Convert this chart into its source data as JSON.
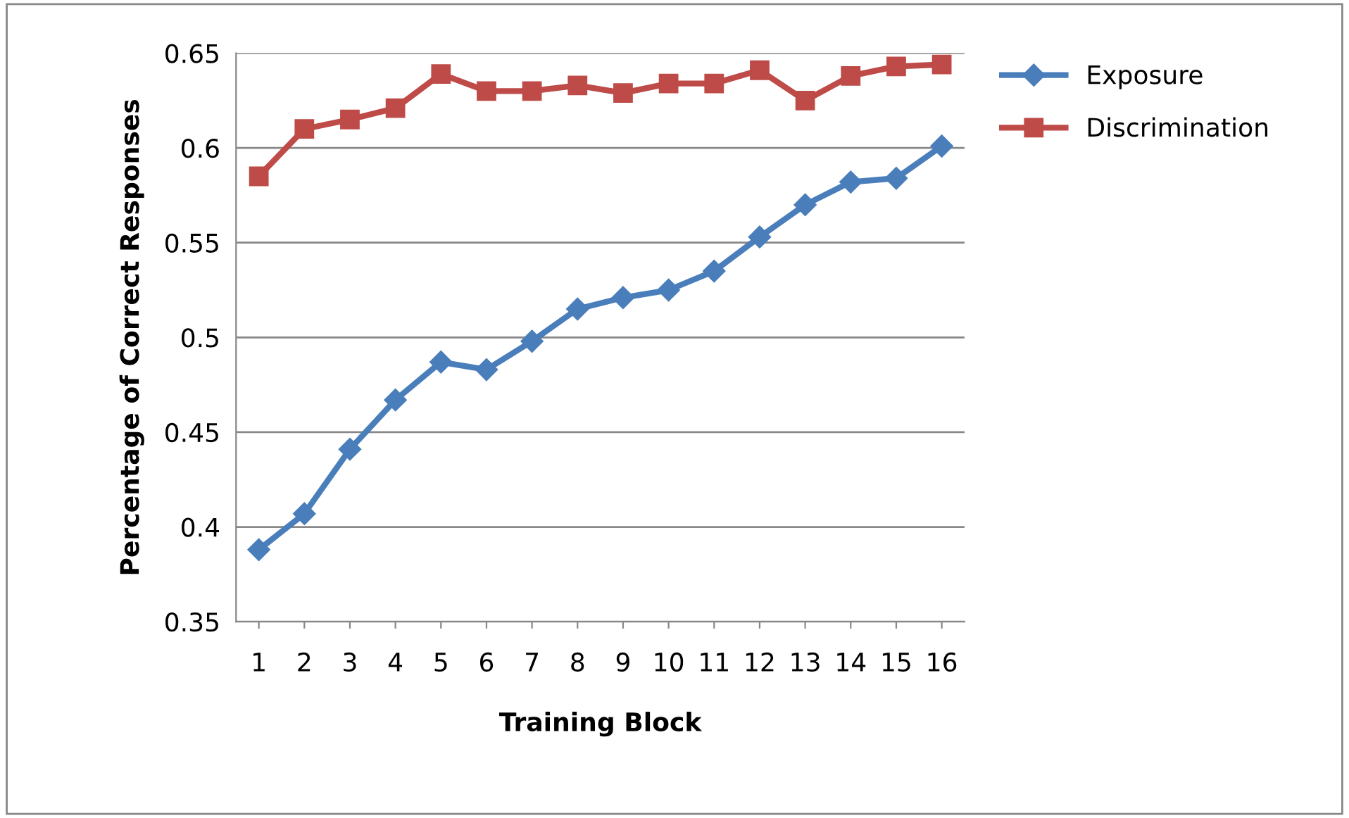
{
  "chart_data": {
    "type": "line",
    "xlabel": "Training Block",
    "ylabel": "Percentage of Correct Responses",
    "categories": [
      "1",
      "2",
      "3",
      "4",
      "5",
      "6",
      "7",
      "8",
      "9",
      "10",
      "11",
      "12",
      "13",
      "14",
      "15",
      "16"
    ],
    "series": [
      {
        "name": "Exposure",
        "color": "#4a7ebb",
        "marker": "diamond",
        "values": [
          0.388,
          0.407,
          0.441,
          0.467,
          0.487,
          0.483,
          0.498,
          0.515,
          0.521,
          0.525,
          0.535,
          0.553,
          0.57,
          0.582,
          0.584,
          0.601
        ]
      },
      {
        "name": "Discrimination",
        "color": "#be4b48",
        "marker": "square",
        "values": [
          0.585,
          0.61,
          0.615,
          0.621,
          0.639,
          0.63,
          0.63,
          0.633,
          0.629,
          0.634,
          0.634,
          0.641,
          0.625,
          0.638,
          0.643,
          0.644
        ]
      }
    ],
    "ylim": [
      0.35,
      0.65
    ],
    "yticks": [
      0.35,
      0.4,
      0.45,
      0.5,
      0.55,
      0.6,
      0.65
    ],
    "grid": "y",
    "legend": "right",
    "line_style": "solid"
  }
}
